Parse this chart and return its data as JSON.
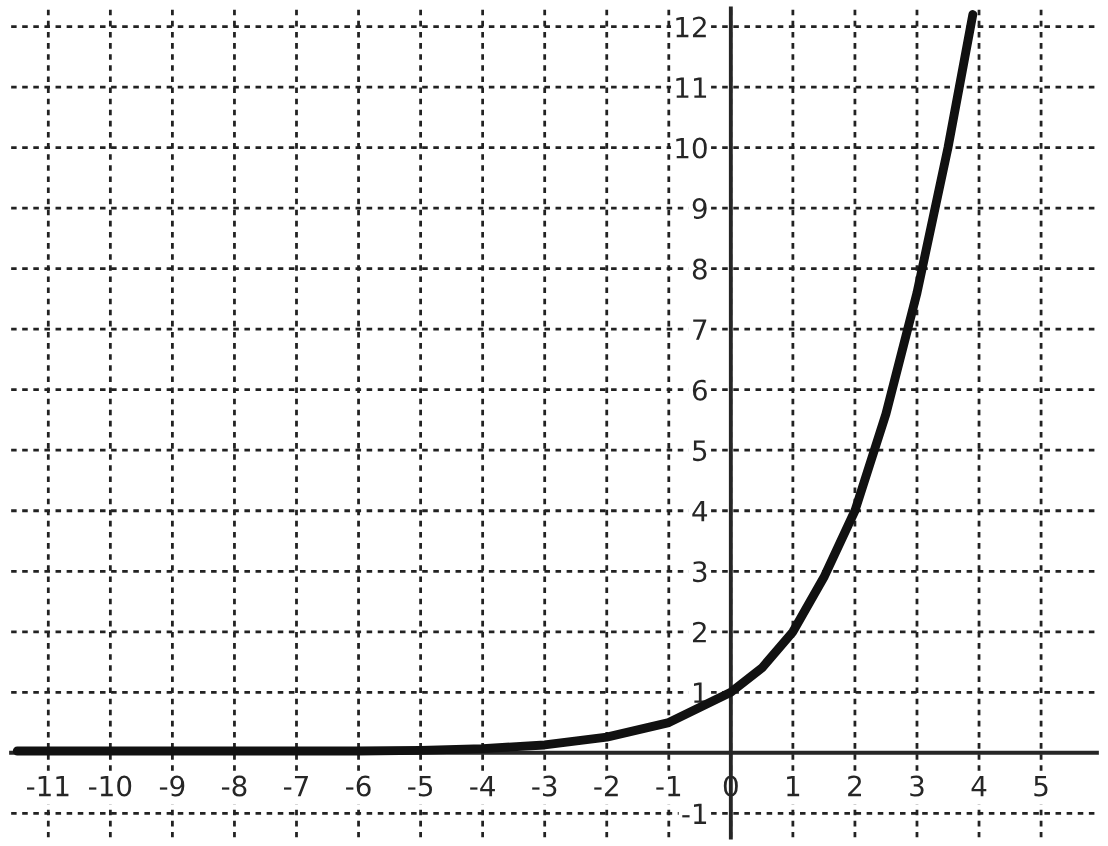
{
  "chart_data": {
    "type": "line",
    "x": [
      -11.5,
      -10,
      -9,
      -8,
      -7,
      -6,
      -5,
      -4,
      -3,
      -2,
      -1,
      0,
      0.5,
      1,
      1.5,
      2,
      2.5,
      3,
      3.5,
      3.9
    ],
    "series": [
      {
        "color": "#111111",
        "values": [
          0.03,
          0.03,
          0.03,
          0.03,
          0.03,
          0.03,
          0.04,
          0.07,
          0.13,
          0.26,
          0.5,
          1,
          1.4,
          2,
          2.9,
          4,
          5.6,
          7.6,
          10,
          12.2
        ]
      }
    ],
    "xlim": [
      -11.6,
      5.9
    ],
    "ylim": [
      -1.4,
      12.3
    ],
    "xticks": [
      -11,
      -10,
      -9,
      -8,
      -7,
      -6,
      -5,
      -4,
      -3,
      -2,
      -1,
      0,
      1,
      2,
      3,
      4,
      5
    ],
    "yticks": [
      -1,
      1,
      2,
      3,
      4,
      5,
      6,
      7,
      8,
      9,
      10,
      11,
      12
    ],
    "grid": true,
    "marker": "none",
    "line_style": "solid"
  }
}
